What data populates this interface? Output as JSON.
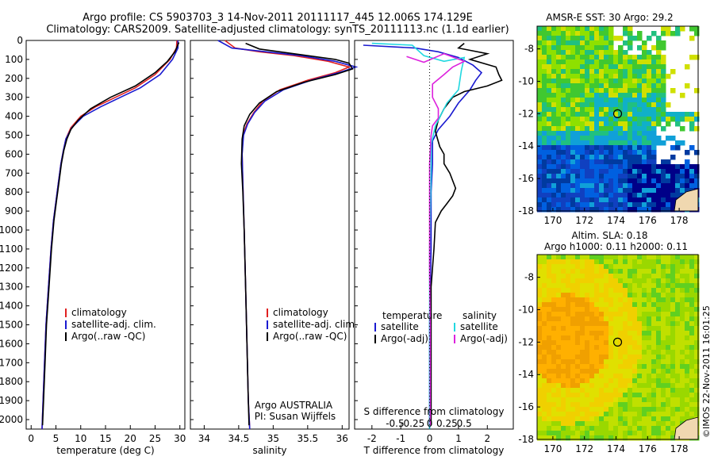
{
  "title": {
    "line1": "Argo profile: CS 5903703_3 14-Nov-2011 20111117_445 12.006S 174.129E",
    "line2": "Climatology: CARS2009. Satellite-adjusted climatology: synTS_20111113.nc (1.1d earlier)"
  },
  "colors": {
    "climatology": "#e02020",
    "satellite": "#1a1ad0",
    "argo": "#000000",
    "cyan": "#22d8e0",
    "magenta": "#dd22dd"
  },
  "depth_axis": {
    "ticks": [
      0,
      100,
      200,
      300,
      400,
      500,
      600,
      700,
      800,
      900,
      1000,
      1100,
      1200,
      1300,
      1400,
      1500,
      1600,
      1700,
      1800,
      1900,
      2000
    ],
    "max": 2050
  },
  "chart_data": [
    {
      "type": "line",
      "xlabel": "temperature (deg C)",
      "xlim": [
        -1,
        31
      ],
      "xticks": [
        0,
        5,
        10,
        15,
        20,
        25,
        30
      ],
      "legend": [
        "climatology",
        "satellite-adj. clim.",
        "Argo(..raw -QC)"
      ],
      "series": [
        {
          "name": "climatology",
          "color": "climatology",
          "points": [
            [
              29.4,
              0
            ],
            [
              29.3,
              40
            ],
            [
              28,
              100
            ],
            [
              25,
              180
            ],
            [
              21,
              250
            ],
            [
              17,
              300
            ],
            [
              13,
              350
            ],
            [
              10,
              400
            ],
            [
              8,
              460
            ],
            [
              7,
              520
            ],
            [
              6.5,
              580
            ],
            [
              6,
              650
            ],
            [
              5.5,
              750
            ],
            [
              5,
              850
            ],
            [
              4.5,
              950
            ],
            [
              4,
              1100
            ],
            [
              3.5,
              1300
            ],
            [
              3,
              1500
            ],
            [
              2.7,
              1700
            ],
            [
              2.4,
              1900
            ],
            [
              2.2,
              2050
            ]
          ]
        },
        {
          "name": "satellite-adj. clim.",
          "color": "satellite",
          "points": [
            [
              29.6,
              0
            ],
            [
              29.6,
              40
            ],
            [
              28.5,
              100
            ],
            [
              26,
              180
            ],
            [
              22,
              250
            ],
            [
              18,
              300
            ],
            [
              14,
              350
            ],
            [
              10.5,
              400
            ],
            [
              8.2,
              460
            ],
            [
              7,
              520
            ],
            [
              6.5,
              580
            ],
            [
              6,
              650
            ],
            [
              5.5,
              750
            ],
            [
              5,
              850
            ],
            [
              4.5,
              950
            ],
            [
              4,
              1100
            ],
            [
              3.5,
              1300
            ],
            [
              3,
              1500
            ],
            [
              2.7,
              1700
            ],
            [
              2.4,
              1900
            ],
            [
              2.2,
              2050
            ]
          ]
        },
        {
          "name": "Argo(..raw -QC)",
          "color": "argo",
          "points": [
            [
              29.8,
              10
            ],
            [
              29,
              60
            ],
            [
              27.5,
              110
            ],
            [
              25,
              170
            ],
            [
              21,
              240
            ],
            [
              16,
              300
            ],
            [
              12,
              360
            ],
            [
              9.5,
              420
            ],
            [
              8,
              470
            ],
            [
              7.2,
              520
            ],
            [
              6.6,
              580
            ],
            [
              6.1,
              650
            ],
            [
              5.6,
              750
            ],
            [
              5.1,
              850
            ],
            [
              4.6,
              950
            ],
            [
              4.1,
              1100
            ],
            [
              3.6,
              1300
            ],
            [
              3.1,
              1500
            ],
            [
              2.8,
              1700
            ],
            [
              2.5,
              1900
            ],
            [
              2.3,
              2030
            ]
          ]
        }
      ]
    },
    {
      "type": "line",
      "xlabel": "salinity",
      "xlim": [
        33.8,
        36.1
      ],
      "xticks": [
        34,
        34.5,
        35,
        35.5,
        36
      ],
      "legend": [
        "climatology",
        "satellite-adj. clim.",
        "Argo(..raw -QC)"
      ],
      "annotation": [
        "Argo AUSTRALIA",
        "PI: Susan Wijffels"
      ],
      "series": [
        {
          "name": "climatology",
          "color": "climatology",
          "points": [
            [
              34.3,
              0
            ],
            [
              34.45,
              40
            ],
            [
              34.8,
              60
            ],
            [
              35.3,
              80
            ],
            [
              35.8,
              110
            ],
            [
              36.1,
              140
            ],
            [
              35.9,
              170
            ],
            [
              35.5,
              210
            ],
            [
              35.1,
              260
            ],
            [
              34.85,
              320
            ],
            [
              34.72,
              380
            ],
            [
              34.62,
              440
            ],
            [
              34.56,
              500
            ],
            [
              34.55,
              600
            ],
            [
              34.56,
              750
            ],
            [
              34.58,
              1000
            ],
            [
              34.6,
              1300
            ],
            [
              34.62,
              1600
            ],
            [
              34.64,
              1900
            ],
            [
              34.66,
              2050
            ]
          ]
        },
        {
          "name": "satellite-adj. clim.",
          "color": "satellite",
          "points": [
            [
              34.2,
              0
            ],
            [
              34.4,
              40
            ],
            [
              34.9,
              60
            ],
            [
              35.4,
              80
            ],
            [
              35.9,
              110
            ],
            [
              36.2,
              140
            ],
            [
              35.95,
              170
            ],
            [
              35.55,
              210
            ],
            [
              35.15,
              260
            ],
            [
              34.88,
              320
            ],
            [
              34.73,
              380
            ],
            [
              34.63,
              440
            ],
            [
              34.57,
              500
            ],
            [
              34.55,
              600
            ],
            [
              34.56,
              750
            ],
            [
              34.58,
              1000
            ],
            [
              34.6,
              1300
            ],
            [
              34.62,
              1600
            ],
            [
              34.64,
              1900
            ],
            [
              34.66,
              2050
            ]
          ]
        },
        {
          "name": "Argo(..raw -QC)",
          "color": "argo",
          "points": [
            [
              34.6,
              15
            ],
            [
              34.8,
              45
            ],
            [
              35.4,
              75
            ],
            [
              35.9,
              100
            ],
            [
              36.1,
              120
            ],
            [
              36.15,
              150
            ],
            [
              35.9,
              180
            ],
            [
              35.45,
              220
            ],
            [
              35.05,
              270
            ],
            [
              34.8,
              330
            ],
            [
              34.66,
              390
            ],
            [
              34.58,
              450
            ],
            [
              34.55,
              520
            ],
            [
              34.54,
              650
            ],
            [
              34.56,
              800
            ],
            [
              34.58,
              1000
            ],
            [
              34.6,
              1300
            ],
            [
              34.62,
              1600
            ],
            [
              34.64,
              1900
            ],
            [
              34.65,
              2030
            ]
          ]
        }
      ]
    },
    {
      "type": "line",
      "xlabel": "T difference from climatology",
      "xlabel_top": "S difference from climatology",
      "xlim": [
        -2.6,
        2.9
      ],
      "xticks": [
        -2,
        -1,
        0,
        1,
        2
      ],
      "xticks_top": [
        {
          "value": -1.2,
          "label": "-0.5"
        },
        {
          "value": -0.6,
          "label": "-0.25"
        },
        {
          "value": 0,
          "label": "0"
        },
        {
          "value": 0.6,
          "label": "0.25"
        },
        {
          "value": 1.2,
          "label": "0.5"
        }
      ],
      "legend_left": {
        "title": "temperature",
        "items": [
          "satellite",
          "Argo(-adj)"
        ]
      },
      "legend_right": {
        "title": "salinity",
        "items": [
          "satellite",
          "Argo(-adj)"
        ]
      },
      "series": [
        {
          "name": "temperature satellite",
          "color": "satellite",
          "points": [
            [
              -2.3,
              25
            ],
            [
              -0.5,
              40
            ],
            [
              0.3,
              60
            ],
            [
              1.0,
              90
            ],
            [
              1.5,
              130
            ],
            [
              1.8,
              170
            ],
            [
              1.6,
              210
            ],
            [
              1.4,
              260
            ],
            [
              1.0,
              330
            ],
            [
              0.7,
              400
            ],
            [
              0.3,
              470
            ],
            [
              0.1,
              530
            ],
            [
              0.1,
              650
            ],
            [
              0.05,
              800
            ],
            [
              0.05,
              1100
            ],
            [
              0,
              1500
            ],
            [
              0,
              2050
            ]
          ]
        },
        {
          "name": "temperature Argo(-adj)",
          "color": "argo",
          "points": [
            [
              1.2,
              15
            ],
            [
              1.0,
              40
            ],
            [
              2.0,
              70
            ],
            [
              1.4,
              100
            ],
            [
              2.3,
              140
            ],
            [
              2.4,
              180
            ],
            [
              2.5,
              210
            ],
            [
              2.0,
              240
            ],
            [
              1.2,
              270
            ],
            [
              0.8,
              300
            ],
            [
              0.5,
              360
            ],
            [
              0.3,
              420
            ],
            [
              0.2,
              480
            ],
            [
              0.35,
              560
            ],
            [
              0.5,
              600
            ],
            [
              0.5,
              650
            ],
            [
              0.7,
              700
            ],
            [
              0.9,
              780
            ],
            [
              0.8,
              820
            ],
            [
              0.6,
              860
            ],
            [
              0.4,
              900
            ],
            [
              0.2,
              960
            ],
            [
              0.15,
              1100
            ],
            [
              0.05,
              1300
            ],
            [
              0.05,
              1600
            ],
            [
              0.05,
              2030
            ]
          ]
        },
        {
          "name": "salinity satellite",
          "color": "cyan",
          "points": [
            [
              -2.0,
              15
            ],
            [
              -0.6,
              25
            ],
            [
              -0.2,
              80
            ],
            [
              0.5,
              110
            ],
            [
              1.2,
              90
            ],
            [
              1.1,
              160
            ],
            [
              1.0,
              260
            ],
            [
              0.6,
              330
            ],
            [
              0.2,
              450
            ],
            [
              0.05,
              550
            ],
            [
              0.05,
              700
            ],
            [
              0,
              1100
            ],
            [
              0,
              1500
            ],
            [
              0,
              2050
            ]
          ]
        },
        {
          "name": "salinity Argo(-adj)",
          "color": "magenta",
          "points": [
            [
              -0.8,
              85
            ],
            [
              -0.2,
              115
            ],
            [
              0.5,
              70
            ],
            [
              1.2,
              110
            ],
            [
              0.8,
              140
            ],
            [
              0.5,
              180
            ],
            [
              0.1,
              230
            ],
            [
              0.1,
              300
            ],
            [
              0.3,
              360
            ],
            [
              0.3,
              410
            ],
            [
              0.1,
              450
            ],
            [
              0.05,
              500
            ],
            [
              0,
              650
            ],
            [
              0,
              900
            ],
            [
              0,
              1200
            ],
            [
              0.02,
              1500
            ],
            [
              0.02,
              2030
            ]
          ]
        }
      ]
    },
    {
      "type": "heatmap",
      "title": "AMSR-E SST: 30 Argo: 29.2",
      "xlim": [
        169,
        179.2
      ],
      "ylim": [
        -18,
        -6.6
      ],
      "xticks": [
        170,
        172,
        174,
        176,
        178
      ],
      "yticks": [
        -8,
        -10,
        -12,
        -14,
        -16,
        -18
      ],
      "marker": [
        174.1,
        -12.0
      ]
    },
    {
      "type": "heatmap",
      "title": "Altim. SLA: 0.18",
      "subtitle": "Argo h1000: 0.11 h2000: 0.11",
      "xlim": [
        169,
        179.2
      ],
      "ylim": [
        -18,
        -6.6
      ],
      "xticks": [
        170,
        172,
        174,
        176,
        178
      ],
      "yticks": [
        -8,
        -10,
        -12,
        -14,
        -16,
        -18
      ],
      "marker": [
        174.1,
        -12.0
      ]
    }
  ],
  "footer_vertical": "©IMOS 22-Nov-2011 16:01:25"
}
